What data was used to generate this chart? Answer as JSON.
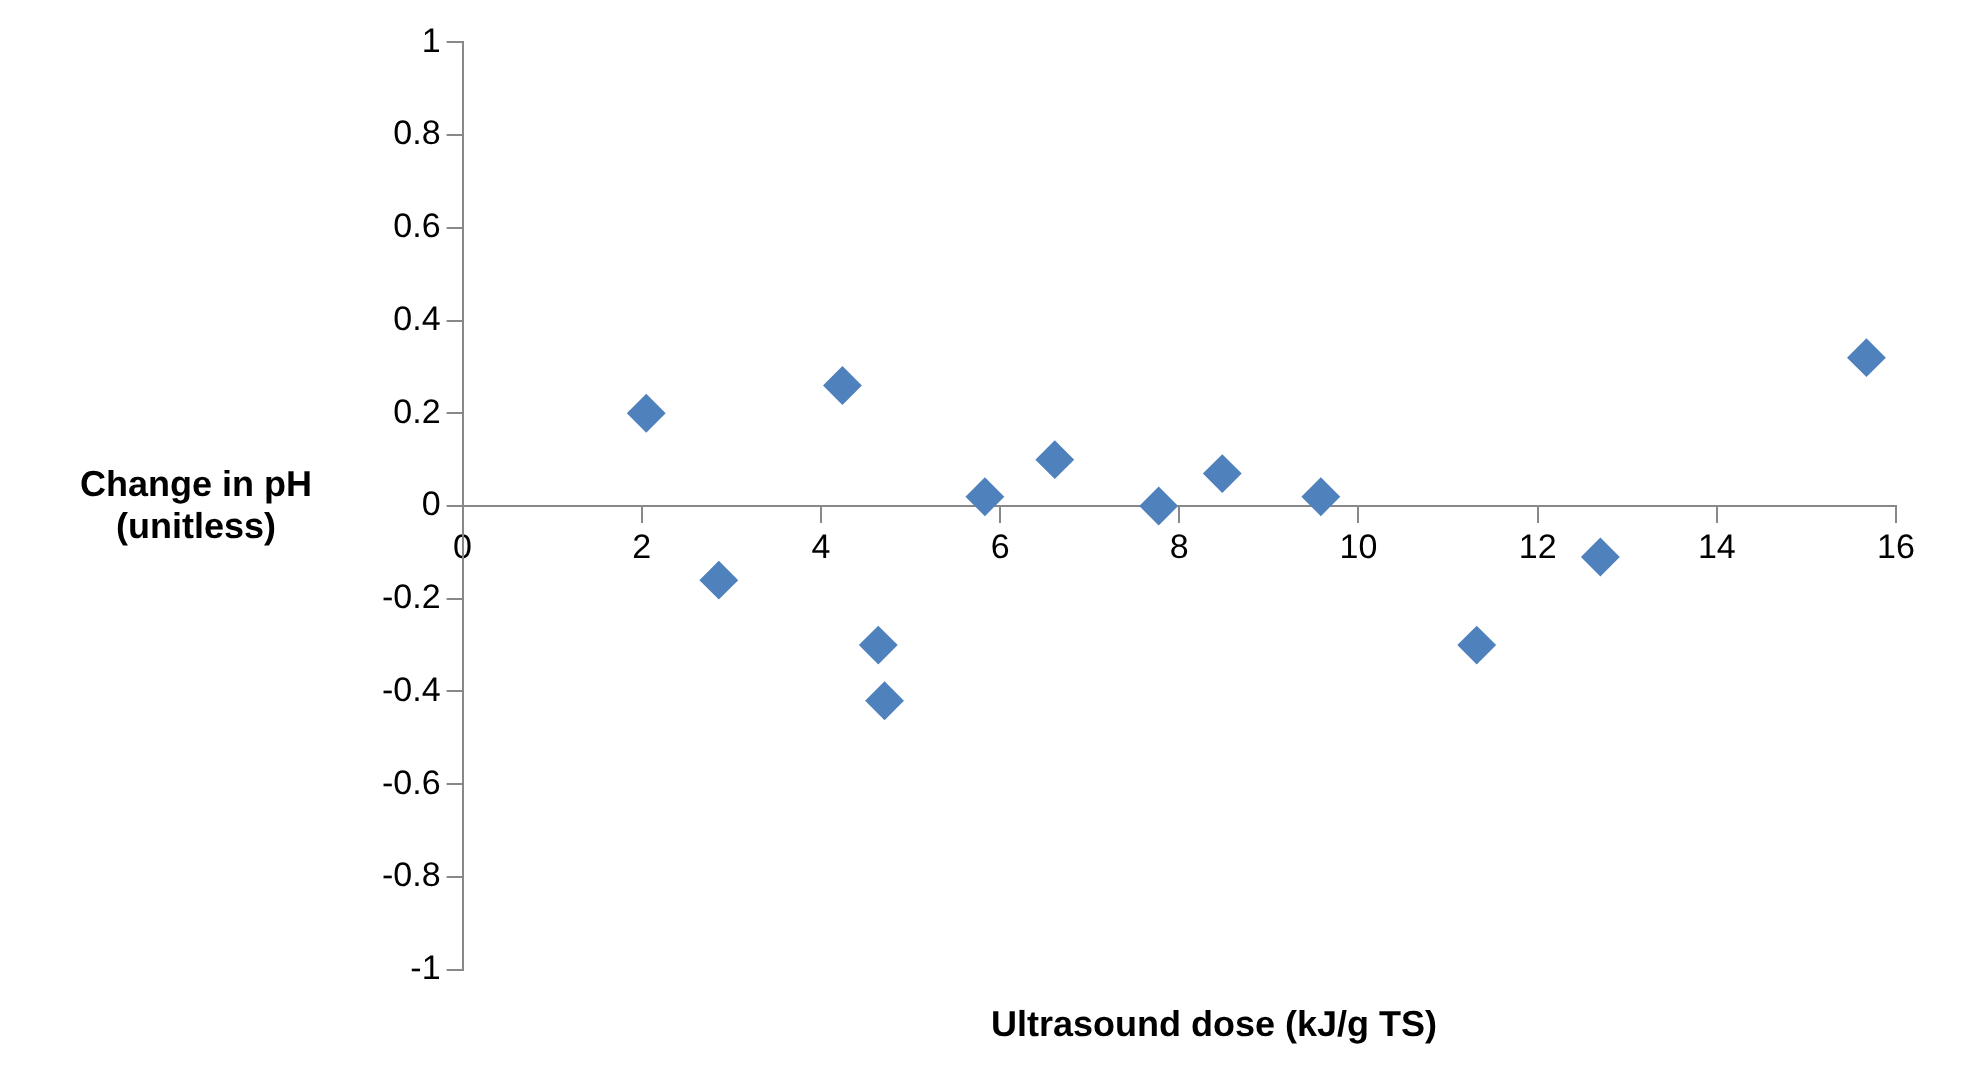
{
  "chart_data": {
    "type": "scatter",
    "xlabel": "Ultrasound dose (kJ/g TS)",
    "ylabel": "Change in pH\n(unitless)",
    "x": [
      2.05,
      2.86,
      4.24,
      4.64,
      4.71,
      5.83,
      6.61,
      7.77,
      8.48,
      9.58,
      11.32,
      12.7,
      15.67
    ],
    "values": [
      0.2,
      -0.16,
      0.26,
      -0.3,
      -0.42,
      0.02,
      0.1,
      0,
      0.07,
      0.02,
      -0.3,
      -0.11,
      0.32
    ],
    "color": "#4f81bd",
    "marker": "diamond",
    "xlim": [
      0,
      16
    ],
    "ylim": [
      -1,
      1
    ],
    "xticks": [
      0,
      2,
      4,
      6,
      8,
      10,
      12,
      14,
      16
    ],
    "yticks": [
      -1,
      -0.8,
      -0.6,
      -0.4,
      -0.2,
      0,
      0.2,
      0.4,
      0.6,
      0.8,
      1
    ],
    "grid": false
  }
}
